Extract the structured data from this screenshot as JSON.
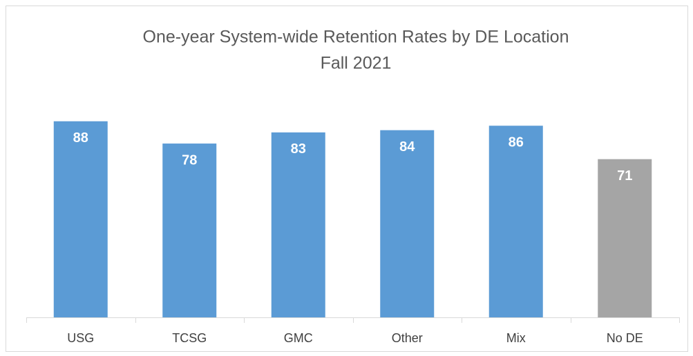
{
  "chart_data": {
    "type": "bar",
    "title": "One-year System-wide Retention Rates by DE Location",
    "subtitle": "Fall 2021",
    "categories": [
      "USG",
      "TCSG",
      "GMC",
      "Other",
      "Mix",
      "No DE"
    ],
    "values": [
      88,
      78,
      83,
      84,
      86,
      71
    ],
    "colors": [
      "#5b9bd5",
      "#5b9bd5",
      "#5b9bd5",
      "#5b9bd5",
      "#5b9bd5",
      "#a5a5a5"
    ],
    "ylim": [
      0,
      100
    ]
  }
}
